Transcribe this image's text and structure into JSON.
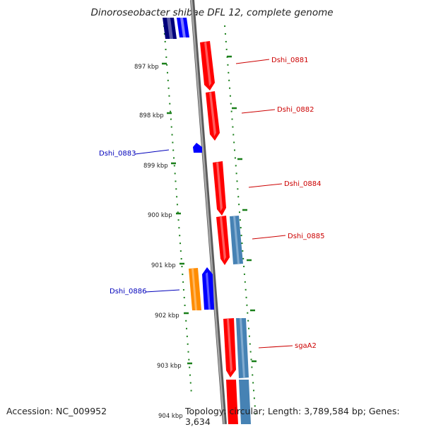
{
  "title": "Dinoroseobacter shibae DFL 12, complete genome",
  "footer": {
    "accession": "Accession: NC_009952",
    "topology": "Topology: circular; Length: 3,789,584 bp; Genes: 3,634"
  },
  "colors": {
    "forward_gene": "#ff0000",
    "reverse_gene": "#0000ff",
    "dark_blue_gene": "#00007a",
    "steel_gene": "#4682b4",
    "orange_gene": "#ff8c00",
    "tick": "#1a7f1a",
    "backbone": "#808080",
    "forward_label": "#cc0000",
    "reverse_label": "#0000bb"
  },
  "scale": {
    "unit": "kbp",
    "labels": [
      "897 kbp",
      "898 kbp",
      "899 kbp",
      "900 kbp",
      "901 kbp",
      "902 kbp",
      "903 kbp",
      "904 kbp"
    ]
  },
  "gene_labels": [
    {
      "name": "Dshi_0881",
      "strand": "forward"
    },
    {
      "name": "Dshi_0882",
      "strand": "forward"
    },
    {
      "name": "Dshi_0883",
      "strand": "reverse"
    },
    {
      "name": "Dshi_0884",
      "strand": "forward"
    },
    {
      "name": "Dshi_0885",
      "strand": "forward"
    },
    {
      "name": "Dshi_0886",
      "strand": "reverse"
    },
    {
      "name": "sgaA2",
      "strand": "forward"
    }
  ]
}
